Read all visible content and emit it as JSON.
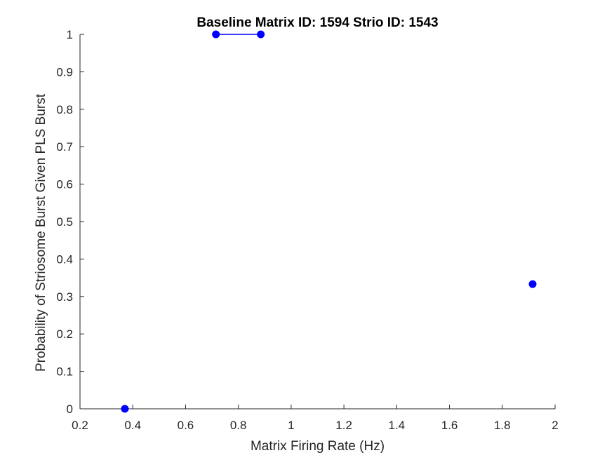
{
  "chart_data": {
    "type": "scatter",
    "title": "Baseline Matrix ID: 1594 Strio ID: 1543",
    "xlabel": "Matrix Firing Rate (Hz)",
    "ylabel": "Probability of Striosome Burst Given PLS Burst",
    "xlim": [
      0.2,
      2.0
    ],
    "ylim": [
      0,
      1
    ],
    "xticks": [
      0.2,
      0.4,
      0.6,
      0.8,
      1.0,
      1.2,
      1.4,
      1.6,
      1.8,
      2.0
    ],
    "xtick_labels": [
      "0.2",
      "0.4",
      "0.6",
      "0.8",
      "1",
      "1.2",
      "1.4",
      "1.6",
      "1.8",
      "2"
    ],
    "yticks": [
      0,
      0.1,
      0.2,
      0.3,
      0.4,
      0.5,
      0.6,
      0.7,
      0.8,
      0.9,
      1.0
    ],
    "ytick_labels": [
      "0",
      "0.1",
      "0.2",
      "0.3",
      "0.4",
      "0.5",
      "0.6",
      "0.7",
      "0.8",
      "0.9",
      "1"
    ],
    "grid": false,
    "series": [
      {
        "color": "#0000ff",
        "marker": "circle",
        "line": "solid",
        "x": [
          0.37,
          0.715,
          0.885,
          1.915
        ],
        "y": [
          0.0,
          1.0,
          1.0,
          0.333
        ],
        "segments": [
          [
            1,
            2
          ]
        ]
      }
    ]
  }
}
